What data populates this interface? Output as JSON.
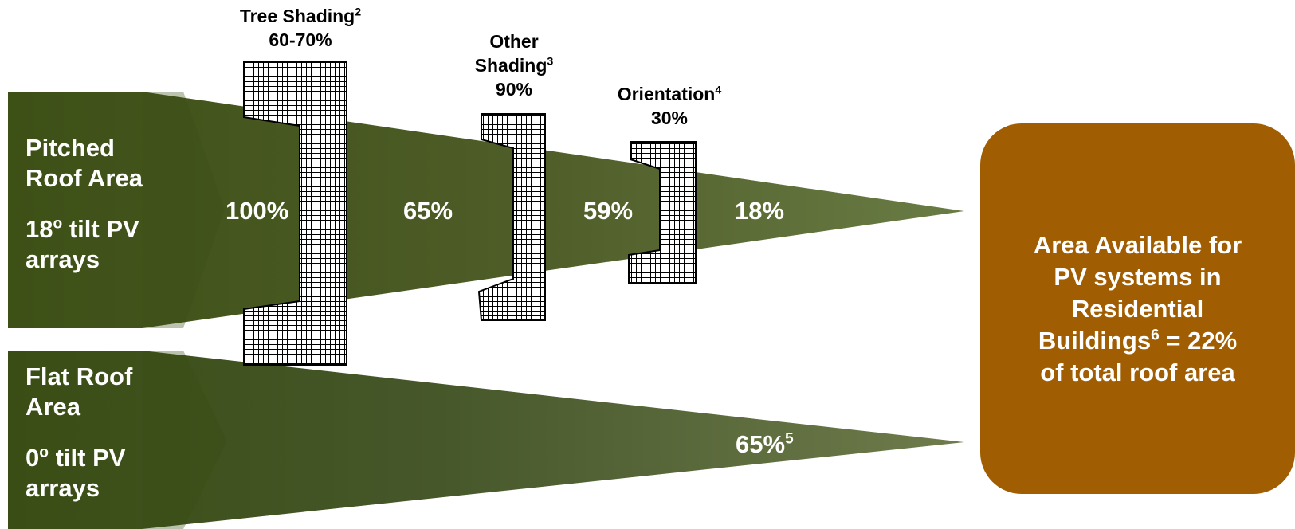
{
  "pitched": {
    "label_line1": "Pitched",
    "label_line2": "Roof Area",
    "tilt_prefix": "18",
    "tilt_sup": "o",
    "tilt_suffix": " tilt PV",
    "arrays": "arrays",
    "values": [
      "100%",
      "65%",
      "59%",
      "18%"
    ]
  },
  "flat": {
    "label_line1": "Flat Roof",
    "label_line2": "Area",
    "tilt_prefix": "0",
    "tilt_sup": "o",
    "tilt_suffix": " tilt PV",
    "arrays": "arrays",
    "value": "65%",
    "value_sup": "5"
  },
  "filters": {
    "tree": {
      "name": "Tree Shading",
      "sup": "2",
      "value": "60-70%"
    },
    "other": {
      "name_line1": "Other",
      "name_line2": "Shading",
      "sup": "3",
      "value": "90%"
    },
    "orientation": {
      "name": "Orientation",
      "sup": "4",
      "value": "30%"
    }
  },
  "result": {
    "line1": "Area Available for",
    "line2": "PV systems in",
    "line3": "Residential",
    "line4_prefix": "Buildings",
    "line4_sup": "6",
    "line4_suffix": " = 22%",
    "line5": "of total roof area"
  },
  "colors": {
    "funnel_dark": "#3d5016",
    "funnel_mid": "#4f5d28",
    "funnel_light": "#6a7c45",
    "result_box": "#a15d02",
    "text_light": "#ffffff",
    "text_dark": "#000000"
  }
}
